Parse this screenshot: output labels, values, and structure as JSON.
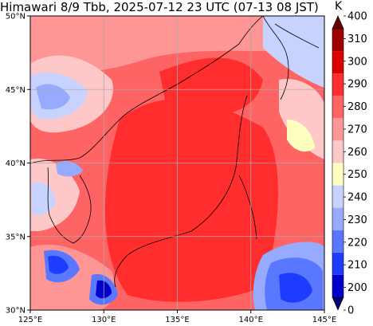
{
  "title": "Himawari 8/9 Tbb, 2025-07-12 23 UTC (07-13 08 JST)",
  "colorbar": {
    "unit": "K",
    "levels": [
      200,
      210,
      220,
      230,
      240,
      250,
      260,
      270,
      280,
      290,
      300,
      310
    ],
    "labels": [
      "400",
      "310",
      "300",
      "290",
      "280",
      "270",
      "260",
      "250",
      "240",
      "230",
      "220",
      "210",
      "200",
      "0"
    ],
    "colors": [
      "#000070",
      "#0000cd",
      "#1e3cff",
      "#5a78ff",
      "#96aaff",
      "#c8d2ff",
      "#ffffc0",
      "#ffc8c8",
      "#ff9696",
      "#ff6464",
      "#ff2d2d",
      "#dc0000",
      "#a00000",
      "#640000"
    ]
  },
  "axes": {
    "lon_labels": [
      "125°E",
      "130°E",
      "135°E",
      "140°E",
      "145°E"
    ],
    "lat_labels": [
      "50°N",
      "45°N",
      "40°N",
      "35°N",
      "30°N"
    ],
    "lon_values": [
      125,
      130,
      135,
      140,
      145
    ],
    "lat_values": [
      50,
      45,
      40,
      35,
      30
    ]
  }
}
